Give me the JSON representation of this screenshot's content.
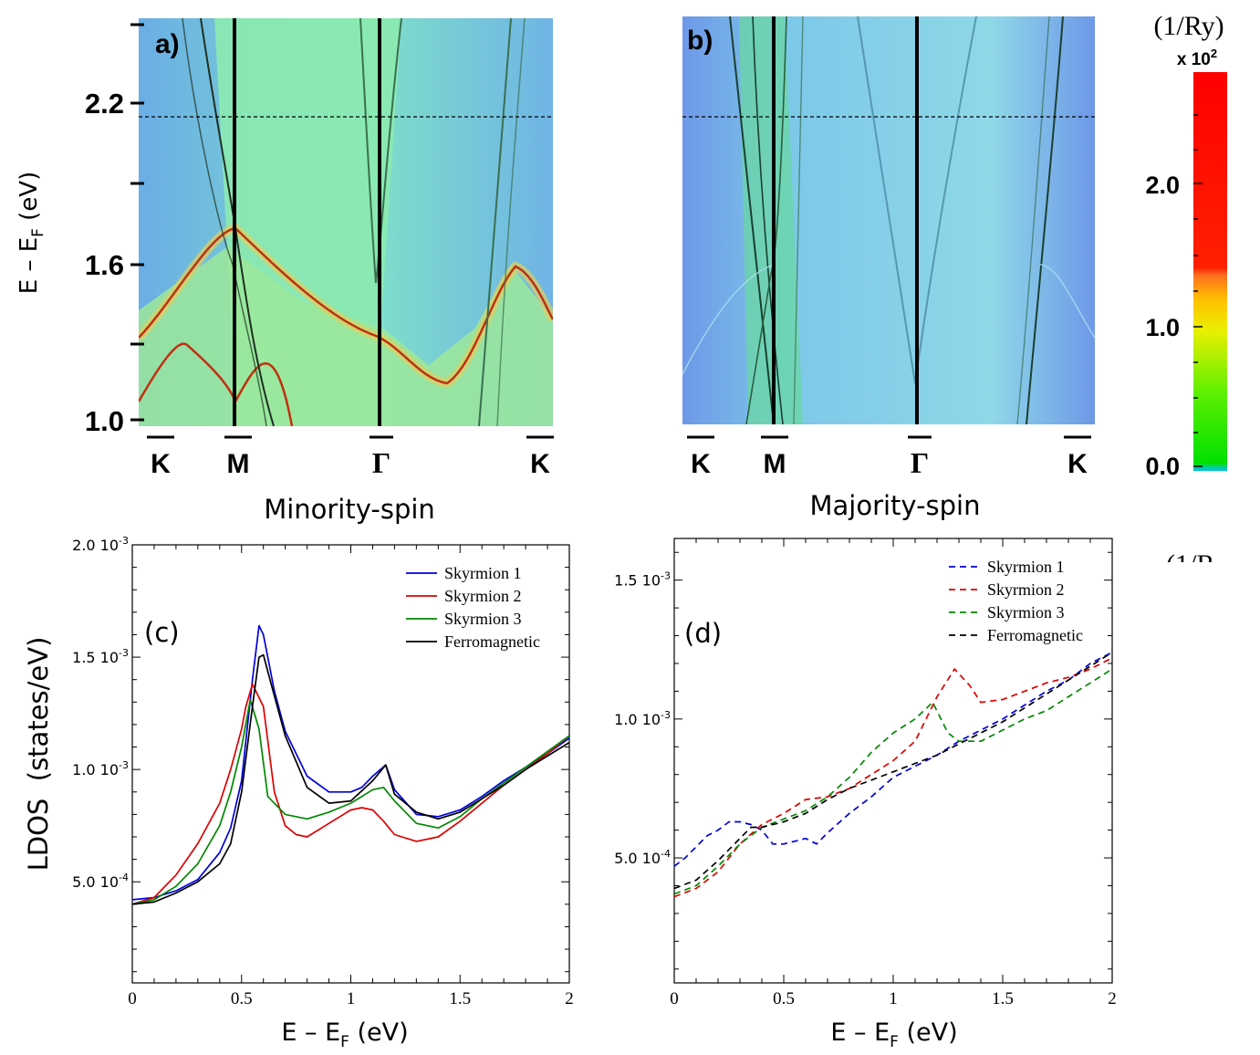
{
  "band_panels": [
    {
      "label": "a)",
      "subtitle": "Minority-spin",
      "ylabel_main": "E – E",
      "ylabel_sub": "F",
      "ylabel_unit": " (eV)",
      "yticks": [
        "2.2",
        "1.6",
        "1.0"
      ],
      "kpoints": [
        "K",
        "M",
        "Γ",
        "K"
      ]
    },
    {
      "label": "b)",
      "subtitle": "Majority-spin",
      "kpoints": [
        "K",
        "M",
        "Γ",
        "K"
      ]
    }
  ],
  "colorbar": {
    "unit": "(1/Ry)",
    "scale": "x 10",
    "scale_exp": "2",
    "ticks": [
      "2.0",
      "1.0",
      "0.0"
    ],
    "colors": [
      "#ff0000",
      "#ff0000",
      "#ff7020",
      "#ffc000",
      "#f0f000",
      "#90f000",
      "#00e000",
      "#00c0ff"
    ]
  },
  "stray_text": "(1/R",
  "chart_data": [
    {
      "type": "line",
      "label": "(c)",
      "xlabel_main": "E – E",
      "xlabel_sub": "F",
      "xlabel_unit": " (eV)",
      "ylabel": "LDOS  (states/eV)",
      "xlim": [
        0,
        2
      ],
      "ylim": [
        5e-05,
        0.002
      ],
      "xticks": [
        "0",
        "0.5",
        "1",
        "1.5",
        "2"
      ],
      "yticks": [
        {
          "label": "2.0 10",
          "exp": "-3",
          "value": 0.002
        },
        {
          "label": "1.5 10",
          "exp": "-3",
          "value": 0.0015
        },
        {
          "label": "1.0 10",
          "exp": "-3",
          "value": 0.001
        },
        {
          "label": "5.0 10",
          "exp": "-4",
          "value": 0.0005
        }
      ],
      "legend_position": "top-right",
      "series": [
        {
          "name": "Skyrmion 1",
          "color": "#0000dd",
          "dashed": false,
          "x": [
            0,
            0.1,
            0.2,
            0.3,
            0.4,
            0.45,
            0.5,
            0.55,
            0.58,
            0.6,
            0.65,
            0.7,
            0.8,
            0.9,
            1.0,
            1.05,
            1.1,
            1.16,
            1.2,
            1.3,
            1.4,
            1.5,
            1.6,
            1.7,
            1.8,
            1.9,
            2.0
          ],
          "y": [
            0.00042,
            0.00043,
            0.00046,
            0.00051,
            0.00063,
            0.00074,
            0.00095,
            0.0014,
            0.00164,
            0.0016,
            0.00135,
            0.00117,
            0.00097,
            0.0009,
            0.0009,
            0.00092,
            0.00097,
            0.00102,
            0.00091,
            0.0008,
            0.00079,
            0.00082,
            0.00088,
            0.00095,
            0.00101,
            0.00107,
            0.00114
          ]
        },
        {
          "name": "Skyrmion 2",
          "color": "#dd0000",
          "dashed": false,
          "x": [
            0,
            0.1,
            0.2,
            0.3,
            0.4,
            0.45,
            0.5,
            0.52,
            0.55,
            0.6,
            0.65,
            0.7,
            0.75,
            0.8,
            0.9,
            1.0,
            1.05,
            1.1,
            1.15,
            1.2,
            1.3,
            1.4,
            1.5,
            1.6,
            1.7,
            1.8,
            1.9,
            2.0
          ],
          "y": [
            0.0004,
            0.00043,
            0.00053,
            0.00067,
            0.00085,
            0.001,
            0.00118,
            0.00128,
            0.00138,
            0.00128,
            0.0009,
            0.00075,
            0.00071,
            0.0007,
            0.00076,
            0.00082,
            0.00083,
            0.00082,
            0.00077,
            0.00071,
            0.00068,
            0.0007,
            0.00077,
            0.00085,
            0.00093,
            0.001,
            0.00107,
            0.00115
          ]
        },
        {
          "name": "Skyrmion 3",
          "color": "#008800",
          "dashed": false,
          "x": [
            0,
            0.1,
            0.2,
            0.3,
            0.4,
            0.45,
            0.5,
            0.54,
            0.58,
            0.62,
            0.7,
            0.8,
            0.9,
            1.0,
            1.1,
            1.15,
            1.2,
            1.3,
            1.4,
            1.5,
            1.6,
            1.7,
            1.8,
            1.9,
            2.0
          ],
          "y": [
            0.0004,
            0.00042,
            0.00048,
            0.00058,
            0.00075,
            0.0009,
            0.0011,
            0.00131,
            0.00118,
            0.00088,
            0.0008,
            0.00078,
            0.00081,
            0.00085,
            0.00091,
            0.00092,
            0.00086,
            0.00076,
            0.00074,
            0.00079,
            0.00087,
            0.00094,
            0.00101,
            0.00108,
            0.00115
          ]
        },
        {
          "name": "Ferromagnetic",
          "color": "#000000",
          "dashed": false,
          "x": [
            0,
            0.1,
            0.2,
            0.3,
            0.4,
            0.45,
            0.5,
            0.55,
            0.58,
            0.6,
            0.63,
            0.7,
            0.8,
            0.9,
            1.0,
            1.1,
            1.16,
            1.2,
            1.3,
            1.4,
            1.5,
            1.6,
            1.7,
            1.8,
            1.9,
            2.0
          ],
          "y": [
            0.0004,
            0.00041,
            0.00045,
            0.0005,
            0.00058,
            0.00067,
            0.0009,
            0.00128,
            0.0015,
            0.00151,
            0.0014,
            0.00115,
            0.00092,
            0.00085,
            0.00086,
            0.00095,
            0.00102,
            0.00089,
            0.00081,
            0.00078,
            0.00081,
            0.00087,
            0.00093,
            0.001,
            0.00106,
            0.00112
          ]
        }
      ]
    },
    {
      "type": "line",
      "label": "(d)",
      "xlabel_main": "E – E",
      "xlabel_sub": "F",
      "xlabel_unit": " (eV)",
      "xlim": [
        0,
        2
      ],
      "ylim": [
        5e-05,
        0.00165
      ],
      "xticks": [
        "0",
        "0.5",
        "1",
        "1.5",
        "2"
      ],
      "yticks": [
        {
          "label": "1.5 10",
          "exp": "-3",
          "value": 0.0015
        },
        {
          "label": "1.0 10",
          "exp": "-3",
          "value": 0.001
        },
        {
          "label": "5.0 10",
          "exp": "-4",
          "value": 0.0005
        }
      ],
      "legend_position": "top-right",
      "series": [
        {
          "name": "Skyrmion 1",
          "color": "#0000dd",
          "dashed": true,
          "x": [
            0,
            0.05,
            0.1,
            0.15,
            0.2,
            0.25,
            0.3,
            0.35,
            0.4,
            0.45,
            0.5,
            0.55,
            0.6,
            0.65,
            0.7,
            0.8,
            0.9,
            1.0,
            1.1,
            1.2,
            1.3,
            1.4,
            1.5,
            1.6,
            1.7,
            1.8,
            1.9,
            2.0
          ],
          "y": [
            0.00047,
            0.0005,
            0.00054,
            0.00058,
            0.0006,
            0.00063,
            0.00063,
            0.00062,
            0.0006,
            0.00055,
            0.00055,
            0.00056,
            0.00057,
            0.00055,
            0.00059,
            0.00066,
            0.00072,
            0.00079,
            0.00083,
            0.00087,
            0.00092,
            0.00096,
            0.001,
            0.00105,
            0.0011,
            0.00114,
            0.0012,
            0.00124
          ]
        },
        {
          "name": "Skyrmion 2",
          "color": "#dd0000",
          "dashed": true,
          "x": [
            0,
            0.1,
            0.2,
            0.3,
            0.4,
            0.5,
            0.6,
            0.7,
            0.8,
            0.9,
            1.0,
            1.1,
            1.2,
            1.28,
            1.35,
            1.4,
            1.5,
            1.6,
            1.7,
            1.8,
            1.9,
            2.0
          ],
          "y": [
            0.00036,
            0.00039,
            0.00045,
            0.00055,
            0.00062,
            0.00066,
            0.00071,
            0.00072,
            0.00075,
            0.0008,
            0.00085,
            0.00092,
            0.00108,
            0.00118,
            0.00112,
            0.00106,
            0.00107,
            0.0011,
            0.00113,
            0.00115,
            0.00118,
            0.00122
          ]
        },
        {
          "name": "Skyrmion 3",
          "color": "#008800",
          "dashed": true,
          "x": [
            0,
            0.1,
            0.2,
            0.3,
            0.4,
            0.5,
            0.6,
            0.7,
            0.8,
            0.9,
            1.0,
            1.1,
            1.18,
            1.25,
            1.3,
            1.4,
            1.5,
            1.6,
            1.7,
            1.8,
            1.9,
            2.0
          ],
          "y": [
            0.00037,
            0.0004,
            0.00047,
            0.00055,
            0.00061,
            0.00064,
            0.00067,
            0.00072,
            0.00079,
            0.00088,
            0.00095,
            0.001,
            0.00106,
            0.00095,
            0.00092,
            0.00092,
            0.00096,
            0.001,
            0.00103,
            0.00108,
            0.00113,
            0.00118
          ]
        },
        {
          "name": "Ferromagnetic",
          "color": "#000000",
          "dashed": true,
          "x": [
            0,
            0.1,
            0.2,
            0.3,
            0.35,
            0.4,
            0.5,
            0.6,
            0.7,
            0.8,
            0.9,
            1.0,
            1.1,
            1.2,
            1.3,
            1.4,
            1.5,
            1.6,
            1.7,
            1.8,
            1.9,
            2.0
          ],
          "y": [
            0.00039,
            0.00042,
            0.00049,
            0.00057,
            0.00061,
            0.00061,
            0.00063,
            0.00066,
            0.00071,
            0.00075,
            0.00078,
            0.00081,
            0.00084,
            0.00087,
            0.00091,
            0.00095,
            0.00099,
            0.00104,
            0.00109,
            0.00114,
            0.00119,
            0.00124
          ]
        }
      ]
    }
  ]
}
